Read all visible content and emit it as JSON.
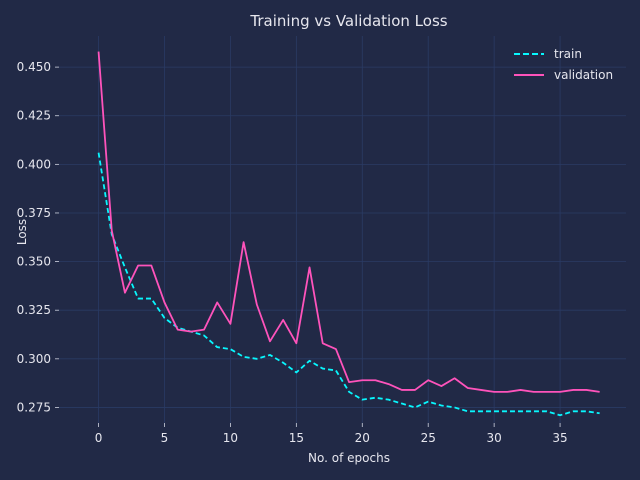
{
  "colors": {
    "background": "#212946",
    "grid": "#2a3b64",
    "text": "#e6e6ee",
    "train": "#08F7FE",
    "validation": "#FE53BB"
  },
  "chart_data": {
    "type": "line",
    "title": "Training vs Validation Loss",
    "xlabel": "No. of epochs",
    "ylabel": "Loss",
    "xlim": [
      -3,
      40
    ],
    "ylim": [
      0.267,
      0.466
    ],
    "xticks": [
      0,
      5,
      10,
      15,
      20,
      25,
      30,
      35
    ],
    "yticks": [
      0.275,
      0.3,
      0.325,
      0.35,
      0.375,
      0.4,
      0.425,
      0.45
    ],
    "ytick_labels": [
      "0.275",
      "0.300",
      "0.325",
      "0.350",
      "0.375",
      "0.400",
      "0.425",
      "0.450"
    ],
    "grid": true,
    "legend_position": "top-right",
    "x": [
      0,
      1,
      2,
      3,
      4,
      5,
      6,
      7,
      8,
      9,
      10,
      11,
      12,
      13,
      14,
      15,
      16,
      17,
      18,
      19,
      20,
      21,
      22,
      23,
      24,
      25,
      26,
      27,
      28,
      29,
      30,
      31,
      32,
      33,
      34,
      35,
      36,
      37,
      38
    ],
    "series": [
      {
        "name": "train",
        "style": "dashed",
        "color": "#08F7FE",
        "values": [
          0.406,
          0.364,
          0.347,
          0.331,
          0.331,
          0.321,
          0.316,
          0.314,
          0.312,
          0.306,
          0.305,
          0.301,
          0.3,
          0.302,
          0.298,
          0.293,
          0.299,
          0.295,
          0.294,
          0.283,
          0.279,
          0.28,
          0.279,
          0.277,
          0.275,
          0.278,
          0.276,
          0.275,
          0.273,
          0.273,
          0.273,
          0.273,
          0.273,
          0.273,
          0.273,
          0.271,
          0.273,
          0.273,
          0.272
        ]
      },
      {
        "name": "validation",
        "style": "solid",
        "color": "#FE53BB",
        "values": [
          0.458,
          0.366,
          0.334,
          0.348,
          0.348,
          0.329,
          0.315,
          0.314,
          0.315,
          0.329,
          0.318,
          0.36,
          0.328,
          0.309,
          0.32,
          0.308,
          0.347,
          0.308,
          0.305,
          0.288,
          0.289,
          0.289,
          0.287,
          0.284,
          0.284,
          0.289,
          0.286,
          0.29,
          0.285,
          0.284,
          0.283,
          0.283,
          0.284,
          0.283,
          0.283,
          0.283,
          0.284,
          0.284,
          0.283
        ]
      }
    ]
  }
}
